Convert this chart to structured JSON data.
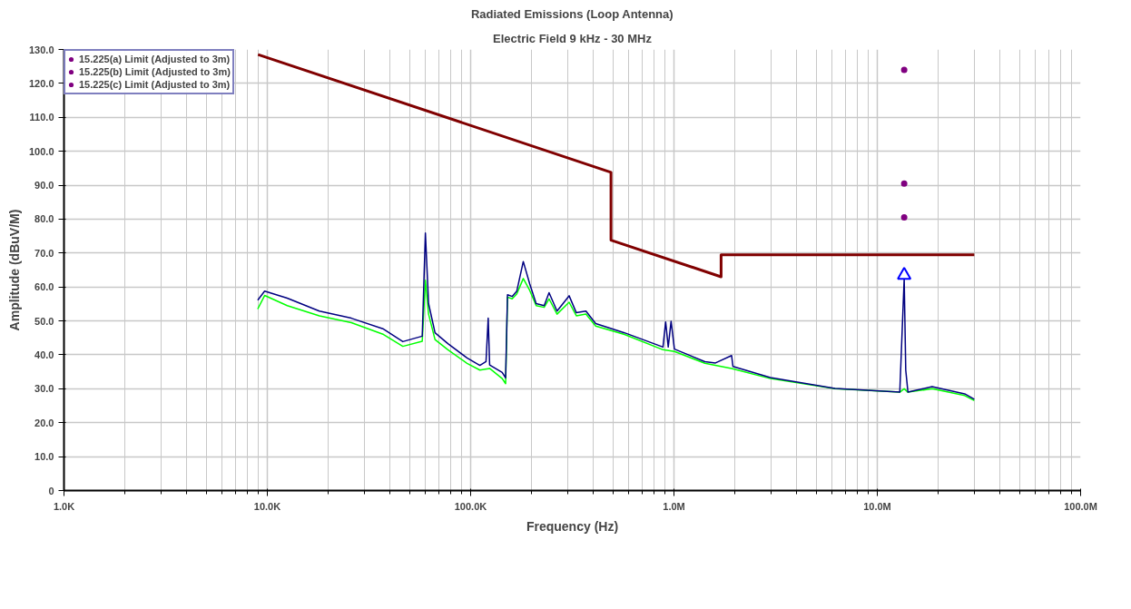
{
  "chart_data": {
    "type": "line",
    "title": "Radiated Emissions (Loop Antenna)",
    "subtitle": "Electric Field 9 kHz - 30 MHz",
    "xlabel": "Frequency (Hz)",
    "ylabel": "Amplitude (dBuV/M)",
    "log": "x",
    "grid": true,
    "legend": "top left",
    "xlim": [
      1000,
      100000000
    ],
    "ylim": [
      0,
      130
    ],
    "xticks": [
      {
        "value": 1000,
        "label": "1.0K"
      },
      {
        "value": 10000,
        "label": "10.0K"
      },
      {
        "value": 100000,
        "label": "100.0K"
      },
      {
        "value": 1000000,
        "label": "1.0M"
      },
      {
        "value": 10000000,
        "label": "10.0M"
      },
      {
        "value": 100000000,
        "label": "100.0M"
      }
    ],
    "yticks": [
      0,
      {
        "value": 10,
        "label": "10.0"
      },
      {
        "value": 20,
        "label": "20.0"
      },
      {
        "value": 30,
        "label": "30.0"
      },
      {
        "value": 40,
        "label": "40.0"
      },
      {
        "value": 50,
        "label": "50.0"
      },
      {
        "value": 60,
        "label": "60.0"
      },
      {
        "value": 70,
        "label": "70.0"
      },
      {
        "value": 80,
        "label": "80.0"
      },
      {
        "value": 90,
        "label": "90.0"
      },
      {
        "value": 100,
        "label": "100.0"
      },
      {
        "value": 110,
        "label": "110.0"
      },
      {
        "value": 120,
        "label": "120.0"
      },
      {
        "value": 130,
        "label": "130.0"
      }
    ],
    "series": [
      {
        "color": "#800000",
        "x": [
          9000,
          490000,
          490000,
          1705000,
          1705000,
          30000000
        ],
        "values": [
          128.5,
          93.8,
          73.8,
          63.0,
          69.5,
          69.5
        ]
      },
      {
        "color": "#00ff00",
        "x": [
          8970,
          9700,
          12530,
          18030,
          25900,
          37300,
          46400,
          57800,
          59900,
          62100,
          66800,
          77300,
          96000,
          111000,
          124000,
          143000,
          148600,
          151800,
          160000,
          168700,
          181500,
          195200,
          210000,
          230000,
          243000,
          266000,
          305000,
          331000,
          369000,
          412000,
          571000,
          883000,
          1005000,
          1419000,
          1920000,
          2980000,
          6200000,
          12900000,
          13560000,
          14150000,
          18600000,
          26900000,
          30000000
        ],
        "values": [
          53.5,
          57.5,
          54.5,
          51.5,
          49.5,
          46.0,
          42.5,
          44.0,
          62.0,
          52.0,
          44.5,
          41.5,
          37.5,
          35.5,
          36.0,
          33.0,
          31.5,
          57.0,
          56.5,
          58.0,
          62.5,
          59.0,
          54.5,
          54.0,
          56.5,
          52.0,
          55.5,
          51.5,
          52.0,
          48.5,
          46.0,
          41.5,
          41.0,
          37.5,
          36.0,
          33.0,
          30.0,
          29.0,
          30.0,
          29.0,
          30.0,
          28.0,
          26.5
        ]
      },
      {
        "color": "#000080",
        "x": [
          8970,
          9700,
          12530,
          18030,
          25900,
          37300,
          46400,
          57800,
          59900,
          62100,
          66800,
          77300,
          96000,
          111000,
          119000,
          122000,
          124000,
          143000,
          148600,
          151800,
          160000,
          168700,
          181500,
          195200,
          210000,
          230000,
          243000,
          266000,
          305000,
          331000,
          369000,
          412000,
          571000,
          883000,
          910000,
          937000,
          968000,
          1005000,
          1419000,
          1600000,
          1920000,
          1950000,
          2980000,
          6200000,
          12900000,
          13560000,
          13800000,
          14150000,
          18600000,
          26900000,
          30000000
        ],
        "values": [
          56.1,
          58.8,
          56.7,
          52.9,
          50.8,
          47.6,
          43.9,
          45.5,
          75.9,
          55.1,
          46.5,
          43.3,
          39.1,
          36.9,
          38.0,
          50.8,
          37.0,
          34.8,
          33.2,
          57.7,
          57.2,
          58.8,
          67.5,
          60.9,
          55.1,
          54.5,
          58.3,
          52.9,
          57.4,
          52.4,
          52.9,
          49.2,
          46.5,
          42.3,
          49.7,
          42.3,
          49.9,
          41.7,
          38.0,
          37.6,
          39.8,
          36.6,
          33.3,
          30.1,
          29.0,
          62.5,
          35.5,
          29.0,
          30.6,
          28.5,
          26.9
        ]
      },
      {
        "type": "scatter",
        "marker": "triangle",
        "color": "#0000ff",
        "x": [
          13560000
        ],
        "values": [
          63.5
        ]
      },
      {
        "type": "scatter",
        "marker": "circle",
        "color": "#800080",
        "name": "15.225(a) Limit (Adjusted to 3m)",
        "x": [
          13560000
        ],
        "values": [
          124.0
        ]
      },
      {
        "type": "scatter",
        "marker": "circle",
        "color": "#800080",
        "name": "15.225(b) Limit (Adjusted to 3m)",
        "x": [
          13560000
        ],
        "values": [
          90.5
        ]
      },
      {
        "type": "scatter",
        "marker": "circle",
        "color": "#800080",
        "name": "15.225(c) Limit (Adjusted to 3m)",
        "x": [
          13560000
        ],
        "values": [
          80.5
        ]
      }
    ]
  }
}
